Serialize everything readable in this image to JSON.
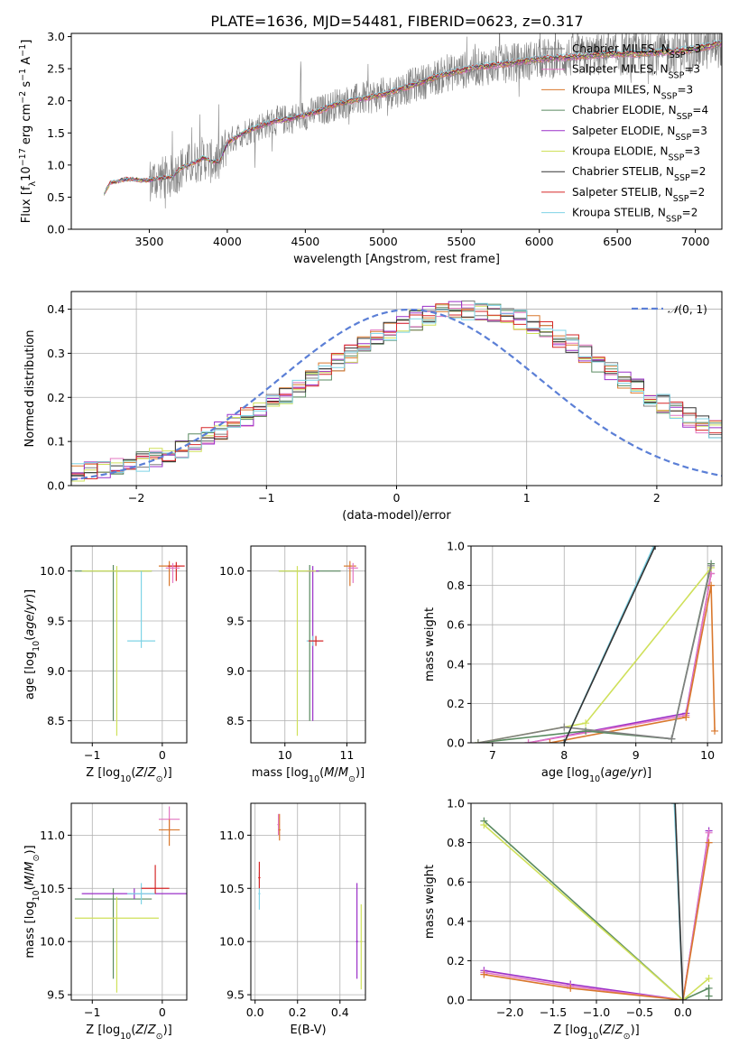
{
  "figure": {
    "title": "PLATE=1636, MJD=54481, FIBERID=0623, z=0.317"
  },
  "series": [
    {
      "name": "Chabrier MILES, N_SSP=3",
      "label_base": "Chabrier MILES, N",
      "label_sub": "SSP",
      "label_tail": "=3",
      "color": "#808080"
    },
    {
      "name": "Salpeter MILES, N_SSP=3",
      "label_base": "Salpeter MILES, N",
      "label_sub": "SSP",
      "label_tail": "=3",
      "color": "#e377c2"
    },
    {
      "name": "Kroupa MILES, N_SSP=3",
      "label_base": "Kroupa MILES, N",
      "label_sub": "SSP",
      "label_tail": "=3",
      "color": "#d9782d"
    },
    {
      "name": "Chabrier ELODIE, N_SSP=4",
      "label_base": "Chabrier ELODIE, N",
      "label_sub": "SSP",
      "label_tail": "=4",
      "color": "#5a8a60"
    },
    {
      "name": "Salpeter ELODIE, N_SSP=3",
      "label_base": "Salpeter ELODIE, N",
      "label_sub": "SSP",
      "label_tail": "=3",
      "color": "#9b30c8"
    },
    {
      "name": "Kroupa ELODIE, N_SSP=3",
      "label_base": "Kroupa ELODIE, N",
      "label_sub": "SSP",
      "label_tail": "=3",
      "color": "#cfe05a"
    },
    {
      "name": "Chabrier STELIB, N_SSP=2",
      "label_base": "Chabrier STELIB, N",
      "label_sub": "SSP",
      "label_tail": "=2",
      "color": "#333333"
    },
    {
      "name": "Salpeter STELIB, N_SSP=2",
      "label_base": "Salpeter STELIB, N",
      "label_sub": "SSP",
      "label_tail": "=2",
      "color": "#d62728"
    },
    {
      "name": "Kroupa STELIB, N_SSP=2",
      "label_base": "Kroupa STELIB, N",
      "label_sub": "SSP",
      "label_tail": "=2",
      "color": "#7fd3e6"
    }
  ],
  "chart_data": [
    {
      "id": "spectrum",
      "type": "line",
      "xlabel": "wavelength [Angstrom, rest frame]",
      "ylabel": "Flux [f_λ10^-17 erg cm^-2 s^-1 A^-1]",
      "xlim": [
        3000,
        7170
      ],
      "ylim": [
        0.0,
        3.05
      ],
      "xticks": [
        3500,
        4000,
        4500,
        5000,
        5500,
        6000,
        6500,
        7000
      ],
      "yticks": [
        0.0,
        0.5,
        1.0,
        1.5,
        2.0,
        2.5,
        3.0
      ],
      "grid": false,
      "legend": "top-right",
      "data_x_range": [
        3210,
        7170
      ],
      "model_curve": {
        "x": [
          3210,
          3250,
          3300,
          3350,
          3400,
          3450,
          3500,
          3550,
          3600,
          3650,
          3700,
          3750,
          3800,
          3850,
          3900,
          3950,
          4000,
          4100,
          4200,
          4300,
          4400,
          4500,
          4600,
          4700,
          4800,
          4900,
          5000,
          5200,
          5400,
          5600,
          5800,
          6000,
          6200,
          6400,
          6600,
          6800,
          7000,
          7170
        ],
        "y": [
          0.55,
          0.72,
          0.75,
          0.78,
          0.78,
          0.76,
          0.76,
          0.8,
          0.8,
          0.82,
          0.95,
          1.0,
          1.05,
          1.12,
          1.05,
          1.05,
          1.35,
          1.5,
          1.6,
          1.68,
          1.72,
          1.78,
          1.85,
          1.95,
          2.0,
          2.05,
          2.1,
          2.25,
          2.42,
          2.52,
          2.58,
          2.65,
          2.68,
          2.72,
          2.73,
          2.76,
          2.8,
          2.9
        ]
      }
    },
    {
      "id": "residuals",
      "type": "line",
      "xlabel": "(data-model)/error",
      "ylabel": "Normed distribution",
      "xlim": [
        -2.5,
        2.5
      ],
      "ylim": [
        0.0,
        0.44
      ],
      "xticks": [
        -2,
        -1,
        0,
        1,
        2
      ],
      "yticks": [
        0.0,
        0.1,
        0.2,
        0.3,
        0.4
      ],
      "grid": true,
      "legend": "top-right",
      "gaussian_label": "N(0,1)",
      "hist_bin_width": 0.1,
      "hist_ref": [
        0.03,
        0.035,
        0.038,
        0.04,
        0.045,
        0.055,
        0.065,
        0.075,
        0.085,
        0.095,
        0.11,
        0.125,
        0.14,
        0.155,
        0.17,
        0.185,
        0.2,
        0.22,
        0.24,
        0.26,
        0.28,
        0.3,
        0.32,
        0.335,
        0.35,
        0.365,
        0.375,
        0.385,
        0.392,
        0.395,
        0.398,
        0.395,
        0.392,
        0.385,
        0.375,
        0.365,
        0.35,
        0.335,
        0.32,
        0.3,
        0.28,
        0.26,
        0.24,
        0.22,
        0.2,
        0.185,
        0.17,
        0.155,
        0.14,
        0.125
      ],
      "gaussian": {
        "mu": 0.1,
        "sigma": 1.0
      }
    },
    {
      "id": "age_vs_Z",
      "type": "scatter",
      "xlabel": "Z [log10(Z/Z_sun)]",
      "ylabel": "age [log10(age/yr)]",
      "xlim": [
        -1.3,
        0.35
      ],
      "ylim": [
        8.28,
        10.25
      ],
      "xticks": [
        -1,
        0
      ],
      "yticks": [
        8.5,
        9.0,
        9.5,
        10.0
      ],
      "grid": true,
      "points": [
        {
          "s": 3,
          "x": -0.7,
          "y": 10.0,
          "xerr": 0.55,
          "yerr": [
            1.5,
            0.06
          ]
        },
        {
          "s": 5,
          "x": -0.65,
          "y": 10.0,
          "xerr": 0.5,
          "yerr": [
            1.65,
            0.05
          ]
        },
        {
          "s": 8,
          "x": -0.3,
          "y": 9.3,
          "xerr": 0.2,
          "yerr": [
            0.07,
            0.7
          ]
        },
        {
          "s": 2,
          "x": 0.1,
          "y": 10.05,
          "xerr": 0.15,
          "yerr": [
            0.2,
            0.05
          ]
        },
        {
          "s": 7,
          "x": 0.2,
          "y": 10.05,
          "xerr": 0.12,
          "yerr": [
            0.15,
            0.04
          ]
        },
        {
          "s": 1,
          "x": 0.15,
          "y": 10.03,
          "xerr": 0.1,
          "yerr": [
            0.15,
            0.05
          ]
        }
      ]
    },
    {
      "id": "age_vs_mass",
      "type": "scatter",
      "xlabel": "mass [log10(M/M_sun)]",
      "ylabel": "",
      "xlim": [
        9.45,
        11.3
      ],
      "ylim": [
        8.28,
        10.25
      ],
      "xticks": [
        10,
        11
      ],
      "yticks": [
        8.5,
        9.0,
        9.5,
        10.0
      ],
      "grid": true,
      "points": [
        {
          "s": 3,
          "x": 10.4,
          "y": 10.0,
          "xerr": 0.5,
          "yerr": [
            1.5,
            0.06
          ]
        },
        {
          "s": 4,
          "x": 10.45,
          "y": 10.0,
          "xerr": 0.1,
          "yerr": [
            1.5,
            0.05
          ]
        },
        {
          "s": 5,
          "x": 10.2,
          "y": 10.0,
          "xerr": 0.3,
          "yerr": [
            1.65,
            0.05
          ]
        },
        {
          "s": 8,
          "x": 10.45,
          "y": 9.3,
          "xerr": 0.1,
          "yerr": [
            0.05,
            0.05
          ]
        },
        {
          "s": 7,
          "x": 10.5,
          "y": 9.3,
          "xerr": 0.12,
          "yerr": [
            0.05,
            0.05
          ]
        },
        {
          "s": 2,
          "x": 11.05,
          "y": 10.05,
          "xerr": 0.1,
          "yerr": [
            0.2,
            0.05
          ]
        },
        {
          "s": 1,
          "x": 11.1,
          "y": 10.03,
          "xerr": 0.08,
          "yerr": [
            0.15,
            0.05
          ]
        }
      ]
    },
    {
      "id": "weight_vs_age",
      "type": "line",
      "xlabel": "age [log10(age/yr)]",
      "ylabel": "mass weight",
      "xlim": [
        6.7,
        10.2
      ],
      "ylim": [
        0.0,
        1.0
      ],
      "xticks": [
        7,
        8,
        9,
        10
      ],
      "yticks": [
        0.0,
        0.2,
        0.4,
        0.6,
        0.8,
        1.0
      ],
      "grid": true,
      "lines": [
        {
          "s": 4,
          "x": [
            7.5,
            9.7,
            10.05
          ],
          "y": [
            0.0,
            0.15,
            0.86
          ]
        },
        {
          "s": 1,
          "x": [
            7.5,
            9.7,
            10.05
          ],
          "y": [
            0.0,
            0.14,
            0.86
          ]
        },
        {
          "s": 2,
          "x": [
            7.8,
            9.7,
            10.05,
            10.1
          ],
          "y": [
            0.0,
            0.13,
            0.8,
            0.06
          ]
        },
        {
          "s": 3,
          "x": [
            6.8,
            8.3,
            9.5,
            10.05
          ],
          "y": [
            0.0,
            0.06,
            0.02,
            0.91
          ]
        },
        {
          "s": 5,
          "x": [
            6.8,
            8.3,
            10.05
          ],
          "y": [
            0.0,
            0.1,
            0.89
          ]
        },
        {
          "s": 0,
          "x": [
            6.8,
            8.0,
            9.5,
            10.05
          ],
          "y": [
            0.0,
            0.08,
            0.02,
            0.9
          ]
        },
        {
          "s": 8,
          "x": [
            8.0,
            9.25
          ],
          "y": [
            0.0,
            1.0
          ]
        },
        {
          "s": 6,
          "x": [
            8.0,
            9.27
          ],
          "y": [
            0.0,
            1.0
          ]
        }
      ]
    },
    {
      "id": "mass_vs_Z",
      "type": "scatter",
      "xlabel": "Z [log10(Z/Z_sun)]",
      "ylabel": "mass [log10(M/M_sun)]",
      "xlim": [
        -1.3,
        0.35
      ],
      "ylim": [
        9.45,
        11.3
      ],
      "xticks": [
        -1,
        0
      ],
      "yticks": [
        9.5,
        10.0,
        10.5,
        11.0
      ],
      "grid": true,
      "points": [
        {
          "s": 3,
          "x": -0.7,
          "y": 10.4,
          "xerr": 0.55,
          "yerr": [
            0.75,
            0.1
          ]
        },
        {
          "s": 5,
          "x": -0.65,
          "y": 10.22,
          "xerr": 0.6,
          "yerr": [
            0.7,
            0.2
          ]
        },
        {
          "s": 4,
          "x": -0.4,
          "y": 10.45,
          "xerr": 0.75,
          "yerr": [
            0.05,
            0.05
          ]
        },
        {
          "s": 8,
          "x": -0.3,
          "y": 10.45,
          "xerr": 0.2,
          "yerr": [
            0.1,
            0.1
          ]
        },
        {
          "s": 7,
          "x": -0.1,
          "y": 10.5,
          "xerr": 0.2,
          "yerr": [
            0.05,
            0.22
          ]
        },
        {
          "s": 1,
          "x": 0.1,
          "y": 11.15,
          "xerr": 0.15,
          "yerr": [
            0.12,
            0.12
          ]
        },
        {
          "s": 2,
          "x": 0.1,
          "y": 11.05,
          "xerr": 0.15,
          "yerr": [
            0.15,
            0.1
          ]
        }
      ]
    },
    {
      "id": "mass_vs_EBV",
      "type": "scatter",
      "xlabel": "E(B-V)",
      "ylabel": "",
      "xlim": [
        -0.02,
        0.52
      ],
      "ylim": [
        9.45,
        11.3
      ],
      "xticks": [
        0.0,
        0.2,
        0.4
      ],
      "yticks": [
        9.5,
        10.0,
        10.5,
        11.0
      ],
      "grid": true,
      "points": [
        {
          "s": 8,
          "x": 0.02,
          "y": 10.45,
          "xerr": 0.005,
          "yerr": [
            0.15,
            0.2
          ]
        },
        {
          "s": 7,
          "x": 0.02,
          "y": 10.6,
          "xerr": 0.005,
          "yerr": [
            0.1,
            0.15
          ]
        },
        {
          "s": 1,
          "x": 0.11,
          "y": 11.1,
          "xerr": 0.005,
          "yerr": [
            0.1,
            0.1
          ]
        },
        {
          "s": 2,
          "x": 0.115,
          "y": 11.05,
          "xerr": 0.005,
          "yerr": [
            0.1,
            0.15
          ]
        },
        {
          "s": 4,
          "x": 0.48,
          "y": 10.0,
          "xerr": 0.005,
          "yerr": [
            0.35,
            0.55
          ]
        },
        {
          "s": 5,
          "x": 0.5,
          "y": 10.0,
          "xerr": 0.005,
          "yerr": [
            0.45,
            0.35
          ]
        }
      ]
    },
    {
      "id": "weight_vs_Z",
      "type": "line",
      "xlabel": "Z [log10(Z/Z_sun)]",
      "ylabel": "mass weight",
      "xlim": [
        -2.45,
        0.45
      ],
      "ylim": [
        0.0,
        1.0
      ],
      "xticks": [
        -2.0,
        -1.5,
        -1.0,
        -0.5,
        0.0
      ],
      "yticks": [
        0.0,
        0.2,
        0.4,
        0.6,
        0.8,
        1.0
      ],
      "grid": true,
      "lines": [
        {
          "s": 3,
          "x": [
            -2.3,
            0.0,
            0.3,
            0.3
          ],
          "y": [
            0.91,
            0.0,
            0.06,
            0.02
          ]
        },
        {
          "s": 5,
          "x": [
            -2.3,
            0.0,
            0.3
          ],
          "y": [
            0.89,
            0.0,
            0.11
          ]
        },
        {
          "s": 4,
          "x": [
            -2.3,
            -1.3,
            0.0,
            0.3
          ],
          "y": [
            0.15,
            0.08,
            0.0,
            0.86
          ]
        },
        {
          "s": 1,
          "x": [
            -2.3,
            -1.3,
            0.0,
            0.3
          ],
          "y": [
            0.14,
            0.07,
            0.0,
            0.85
          ]
        },
        {
          "s": 2,
          "x": [
            -2.3,
            -1.3,
            0.0,
            0.3
          ],
          "y": [
            0.13,
            0.06,
            0.0,
            0.8
          ]
        },
        {
          "s": 8,
          "x": [
            -0.1,
            0.0
          ],
          "y": [
            1.0,
            0.0
          ]
        },
        {
          "s": 6,
          "x": [
            -0.09,
            0.0
          ],
          "y": [
            1.0,
            0.0
          ]
        }
      ]
    }
  ]
}
